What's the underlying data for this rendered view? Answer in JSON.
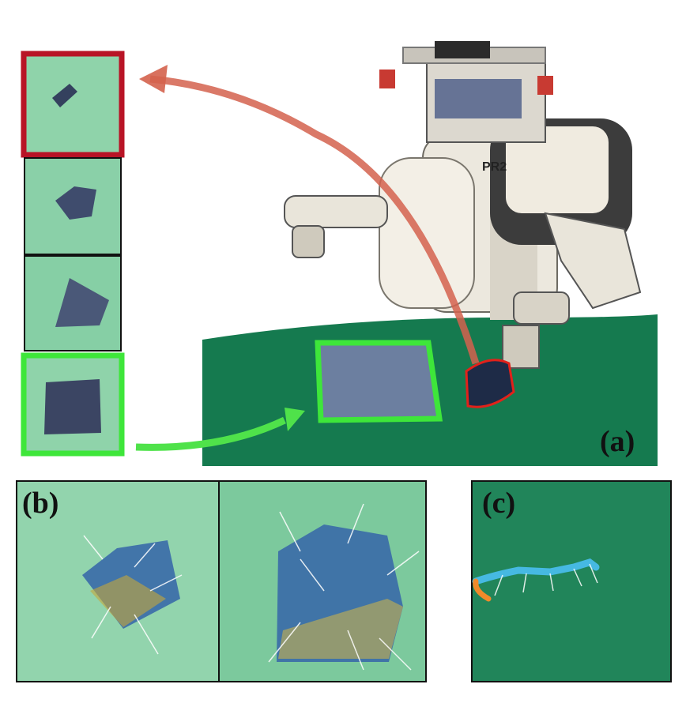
{
  "labels": {
    "a": "(a)",
    "b": "(b)",
    "c": "(c)"
  },
  "robot": {
    "head_text": "PR2"
  },
  "colors": {
    "start_frame": "#b81426",
    "goal_frame": "#3ee63a",
    "arrow_top": "#d4624d",
    "arrow_bottom": "#4fe24a",
    "table_cloth": "#157a4f",
    "background_mat": "#8fd6ad",
    "cloth": "#3b4a6b"
  }
}
